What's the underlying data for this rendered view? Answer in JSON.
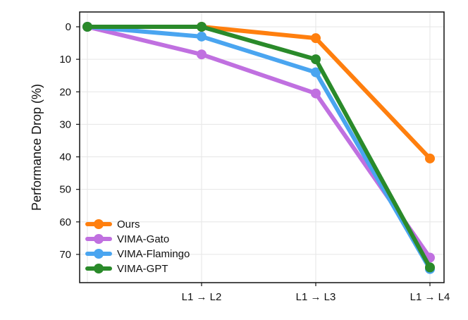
{
  "chart_data": {
    "type": "line",
    "title": "",
    "xlabel": "",
    "ylabel": "Performance Drop (%)",
    "categories": [
      "",
      "L1 → L2",
      "L1 → L3",
      "L1 → L4"
    ],
    "ylim": [
      0,
      78
    ],
    "y_inverted": true,
    "yticks": [
      0,
      10,
      20,
      30,
      40,
      50,
      60,
      70
    ],
    "grid": true,
    "legend_position": "bottom-left",
    "series": [
      {
        "name": "Ours",
        "color": "#ff7f0e",
        "values": [
          0,
          0,
          3.5,
          40.5
        ]
      },
      {
        "name": "VIMA-Gato",
        "color": "#c070e0",
        "values": [
          0,
          8.5,
          20.5,
          71
        ]
      },
      {
        "name": "VIMA-Flamingo",
        "color": "#4aa5f0",
        "values": [
          0,
          3,
          14,
          74.5
        ]
      },
      {
        "name": "VIMA-GPT",
        "color": "#2a8a2a",
        "values": [
          0,
          0,
          10,
          74
        ]
      }
    ]
  }
}
